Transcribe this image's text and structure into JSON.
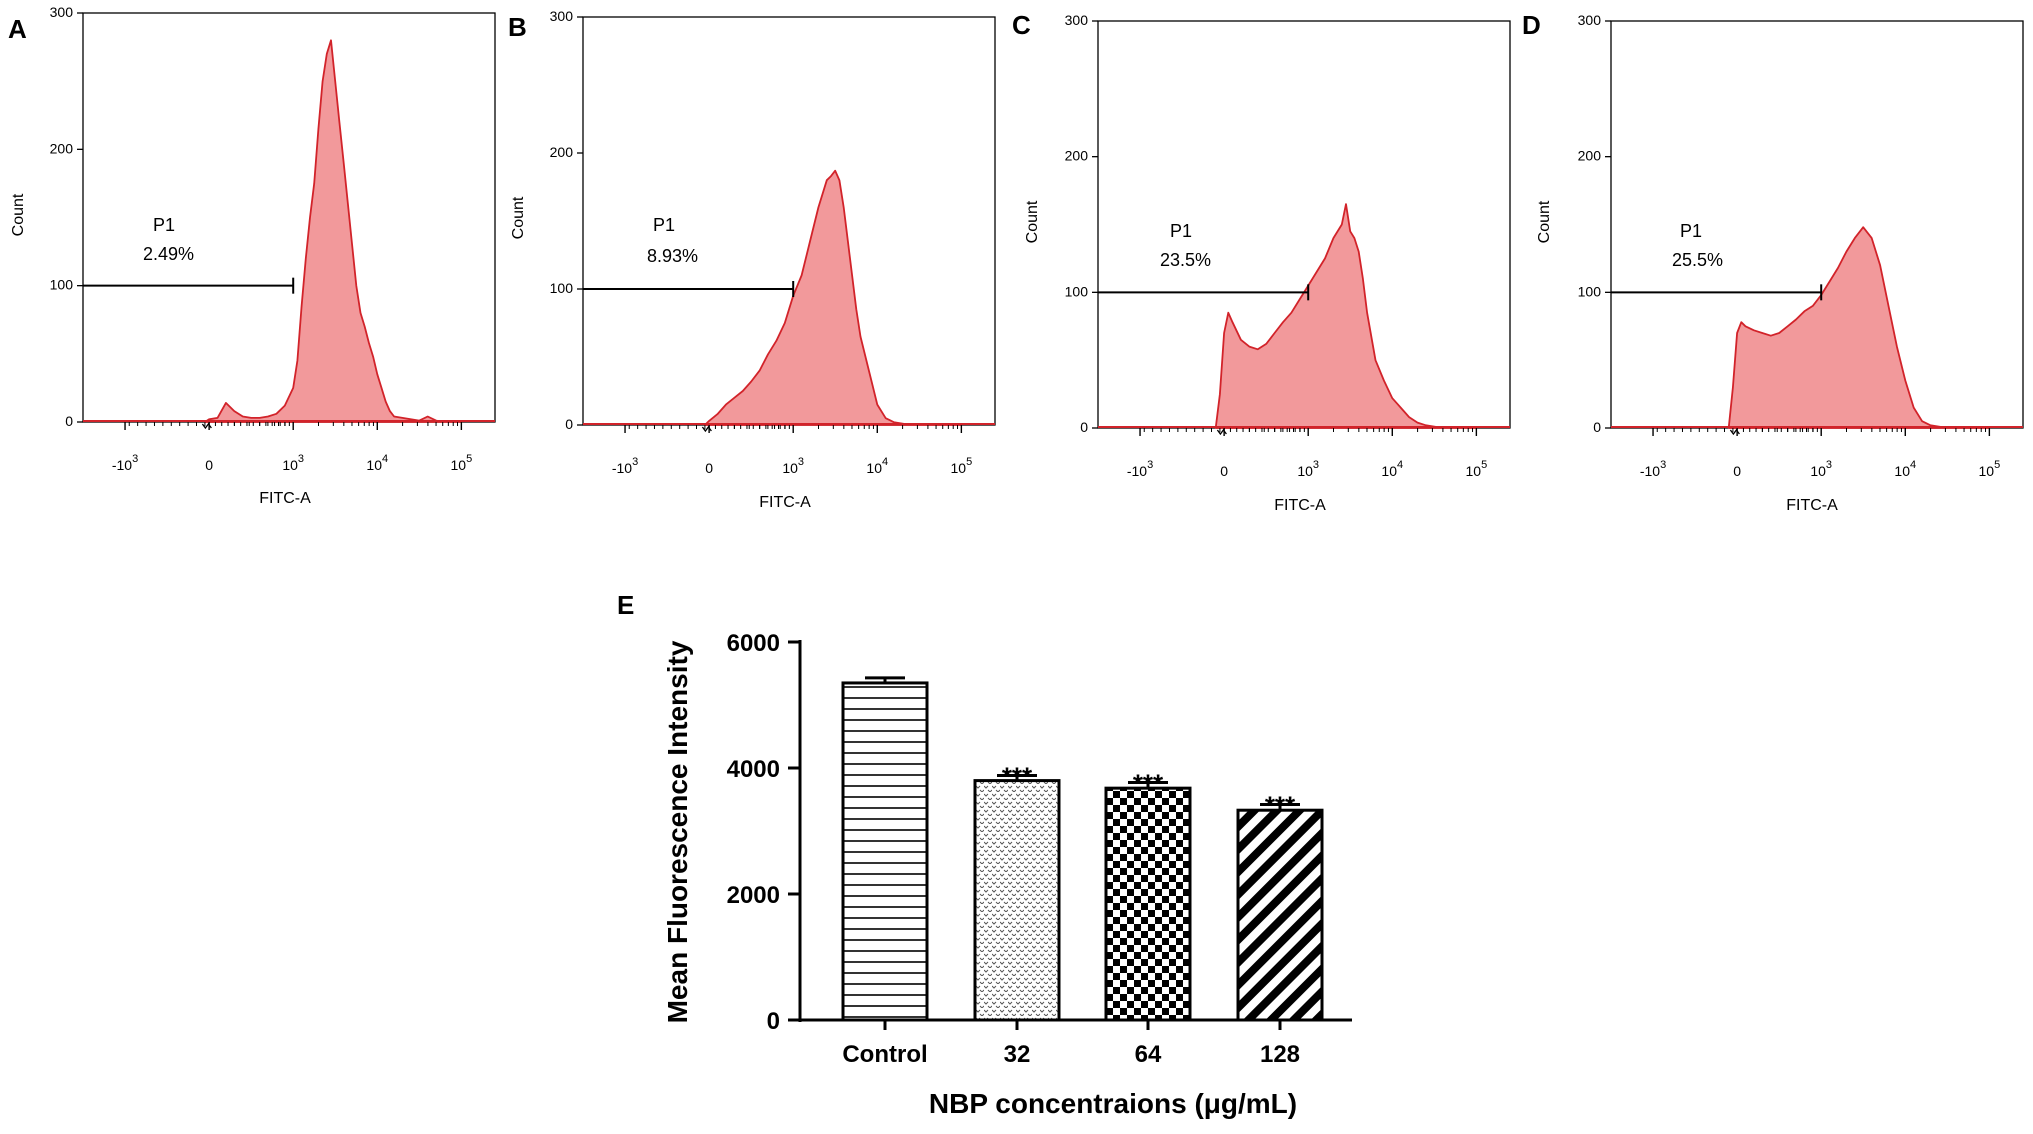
{
  "chart_data": [
    {
      "panel": "A",
      "type": "area",
      "xlabel": "FITC-A",
      "ylabel": "Count",
      "ylim": [
        0,
        300
      ],
      "yticks": [
        "0",
        "100",
        "200",
        "300"
      ],
      "xtick_labels": [
        {
          "base": "-10",
          "exp": "3",
          "v": -1
        },
        {
          "base": "0",
          "exp": "",
          "v": 0
        },
        {
          "base": "10",
          "exp": "3",
          "v": 1
        },
        {
          "base": "10",
          "exp": "4",
          "v": 2
        },
        {
          "base": "10",
          "exp": "5",
          "v": 3
        }
      ],
      "xlim": [
        -1.5,
        3.4
      ],
      "gate": {
        "name": "P1",
        "percent": "2.49%",
        "x_end": 1.0,
        "level": 100
      },
      "x": [
        -0.05,
        0,
        0.1,
        0.2,
        0.3,
        0.4,
        0.5,
        0.6,
        0.7,
        0.8,
        0.9,
        1.0,
        1.05,
        1.1,
        1.15,
        1.2,
        1.25,
        1.3,
        1.35,
        1.4,
        1.45,
        1.5,
        1.55,
        1.6,
        1.65,
        1.7,
        1.75,
        1.8,
        1.85,
        1.9,
        1.95,
        2.0,
        2.05,
        2.1,
        2.15,
        2.2,
        2.3,
        2.4,
        2.5,
        2.6,
        2.7,
        2.8,
        3.0
      ],
      "y": [
        0,
        2,
        3,
        14,
        8,
        4,
        3,
        3,
        4,
        6,
        12,
        25,
        45,
        85,
        120,
        150,
        175,
        215,
        250,
        270,
        280,
        250,
        220,
        190,
        160,
        130,
        100,
        80,
        70,
        58,
        48,
        35,
        25,
        15,
        8,
        4,
        3,
        2,
        1,
        4,
        1,
        0,
        0
      ]
    },
    {
      "panel": "B",
      "type": "area",
      "xlabel": "FITC-A",
      "ylabel": "Count",
      "ylim": [
        0,
        300
      ],
      "yticks": [
        "0",
        "100",
        "200",
        "300"
      ],
      "xtick_labels": [
        {
          "base": "-10",
          "exp": "3",
          "v": -1
        },
        {
          "base": "0",
          "exp": "",
          "v": 0
        },
        {
          "base": "10",
          "exp": "3",
          "v": 1
        },
        {
          "base": "10",
          "exp": "4",
          "v": 2
        },
        {
          "base": "10",
          "exp": "5",
          "v": 3
        }
      ],
      "xlim": [
        -1.5,
        3.4
      ],
      "gate": {
        "name": "P1",
        "percent": "8.93%",
        "x_end": 1.0,
        "level": 100
      },
      "x": [
        -0.05,
        0,
        0.1,
        0.2,
        0.3,
        0.4,
        0.5,
        0.6,
        0.7,
        0.8,
        0.9,
        1.0,
        1.1,
        1.2,
        1.3,
        1.4,
        1.45,
        1.5,
        1.55,
        1.6,
        1.65,
        1.7,
        1.75,
        1.8,
        1.9,
        2.0,
        2.1,
        2.2,
        2.3,
        2.4,
        2.6,
        3.0
      ],
      "y": [
        0,
        3,
        8,
        15,
        20,
        25,
        32,
        40,
        52,
        62,
        75,
        95,
        110,
        135,
        160,
        180,
        183,
        187,
        180,
        160,
        135,
        110,
        85,
        65,
        40,
        15,
        5,
        2,
        1,
        0,
        0,
        0
      ]
    },
    {
      "panel": "C",
      "type": "area",
      "xlabel": "FITC-A",
      "ylabel": "Count",
      "ylim": [
        0,
        300
      ],
      "yticks": [
        "0",
        "100",
        "200",
        "300"
      ],
      "xtick_labels": [
        {
          "base": "-10",
          "exp": "3",
          "v": -1
        },
        {
          "base": "0",
          "exp": "",
          "v": 0
        },
        {
          "base": "10",
          "exp": "3",
          "v": 1
        },
        {
          "base": "10",
          "exp": "4",
          "v": 2
        },
        {
          "base": "10",
          "exp": "5",
          "v": 3
        }
      ],
      "xlim": [
        -1.5,
        3.4
      ],
      "gate": {
        "name": "P1",
        "percent": "23.5%",
        "x_end": 1.0,
        "level": 100
      },
      "x": [
        -0.1,
        -0.05,
        0,
        0.05,
        0.1,
        0.2,
        0.3,
        0.4,
        0.5,
        0.6,
        0.7,
        0.8,
        0.9,
        1.0,
        1.1,
        1.2,
        1.3,
        1.4,
        1.45,
        1.5,
        1.55,
        1.6,
        1.65,
        1.7,
        1.8,
        1.9,
        2.0,
        2.1,
        2.2,
        2.3,
        2.4,
        2.5,
        2.6,
        2.8,
        3.0
      ],
      "y": [
        0,
        25,
        70,
        85,
        78,
        65,
        60,
        58,
        62,
        70,
        78,
        85,
        95,
        105,
        115,
        125,
        140,
        150,
        165,
        145,
        140,
        130,
        110,
        85,
        50,
        35,
        22,
        15,
        8,
        4,
        2,
        1,
        0,
        0,
        0
      ]
    },
    {
      "panel": "D",
      "type": "area",
      "xlabel": "FITC-A",
      "ylabel": "Count",
      "ylim": [
        0,
        300
      ],
      "yticks": [
        "0",
        "100",
        "200",
        "300"
      ],
      "xtick_labels": [
        {
          "base": "-10",
          "exp": "3",
          "v": -1
        },
        {
          "base": "0",
          "exp": "",
          "v": 0
        },
        {
          "base": "10",
          "exp": "3",
          "v": 1
        },
        {
          "base": "10",
          "exp": "4",
          "v": 2
        },
        {
          "base": "10",
          "exp": "5",
          "v": 3
        }
      ],
      "xlim": [
        -1.5,
        3.4
      ],
      "gate": {
        "name": "P1",
        "percent": "25.5%",
        "x_end": 1.0,
        "level": 100
      },
      "x": [
        -0.1,
        -0.05,
        0,
        0.05,
        0.1,
        0.2,
        0.3,
        0.4,
        0.5,
        0.6,
        0.7,
        0.8,
        0.9,
        1.0,
        1.1,
        1.2,
        1.3,
        1.4,
        1.5,
        1.6,
        1.7,
        1.8,
        1.9,
        2.0,
        2.1,
        2.2,
        2.3,
        2.4,
        2.5,
        2.7,
        3.0
      ],
      "y": [
        0,
        30,
        70,
        78,
        75,
        72,
        70,
        68,
        70,
        75,
        80,
        86,
        90,
        98,
        108,
        118,
        130,
        140,
        148,
        140,
        120,
        90,
        60,
        35,
        15,
        5,
        2,
        1,
        0,
        0,
        0
      ]
    },
    {
      "panel": "E",
      "type": "bar",
      "categories": [
        "Control",
        "32",
        "64",
        "128"
      ],
      "values": [
        5350,
        3800,
        3680,
        3330
      ],
      "errors": [
        80,
        80,
        90,
        90
      ],
      "significance": [
        "",
        "***",
        "***",
        "***"
      ],
      "patterns": [
        "horizontal-lines",
        "dots",
        "checker",
        "diagonal"
      ],
      "ylim": [
        0,
        6000
      ],
      "yticks": [
        "0",
        "2000",
        "4000",
        "6000"
      ],
      "xlabel": "NBP concentraions (μg/mL)",
      "ylabel": "Mean Fluorescence Intensity"
    }
  ],
  "colors": {
    "histogram_fill": "#f2999b",
    "histogram_line": "#d2232a",
    "axis": "#000000"
  }
}
